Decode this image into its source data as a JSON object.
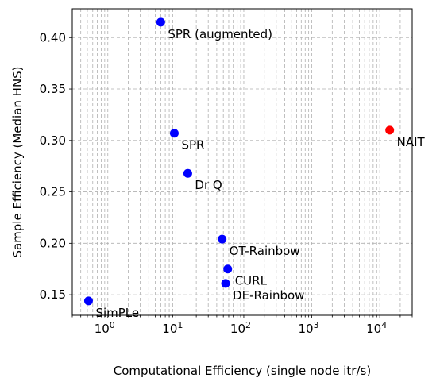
{
  "chart_data": {
    "type": "scatter",
    "title": "",
    "xlabel": "Computational Efficiency (single node itr/s)",
    "ylabel": "Sample Efficiency (Median HNS)",
    "xscale": "log",
    "xlim": [
      0.3,
      30000
    ],
    "ylim": [
      0.13,
      0.428
    ],
    "x_ticks": [
      1,
      10,
      100,
      1000,
      10000
    ],
    "x_tick_labels": [
      {
        "base": "10",
        "exp": "0"
      },
      {
        "base": "10",
        "exp": "1"
      },
      {
        "base": "10",
        "exp": "2"
      },
      {
        "base": "10",
        "exp": "3"
      },
      {
        "base": "10",
        "exp": "4"
      }
    ],
    "y_ticks": [
      0.15,
      0.2,
      0.25,
      0.3,
      0.35,
      0.4
    ],
    "y_tick_labels": [
      "0.15",
      "0.20",
      "0.25",
      "0.30",
      "0.35",
      "0.40"
    ],
    "grid": true,
    "legend": "none",
    "colors": {
      "default": "#0000ff",
      "highlight": "#ff0000"
    },
    "points": [
      {
        "label": "SPR (augmented)",
        "x": 6,
        "y": 0.415,
        "color": "#0000ff"
      },
      {
        "label": "SPR",
        "x": 9.5,
        "y": 0.307,
        "color": "#0000ff"
      },
      {
        "label": "Dr Q",
        "x": 15,
        "y": 0.268,
        "color": "#0000ff"
      },
      {
        "label": "OT-Rainbow",
        "x": 48,
        "y": 0.204,
        "color": "#0000ff"
      },
      {
        "label": "CURL",
        "x": 58,
        "y": 0.175,
        "color": "#0000ff"
      },
      {
        "label": "DE-Rainbow",
        "x": 54,
        "y": 0.161,
        "color": "#0000ff"
      },
      {
        "label": "SimPLe",
        "x": 0.52,
        "y": 0.144,
        "color": "#0000ff"
      },
      {
        "label": "NAIT",
        "x": 14000,
        "y": 0.31,
        "color": "#ff0000"
      }
    ]
  }
}
